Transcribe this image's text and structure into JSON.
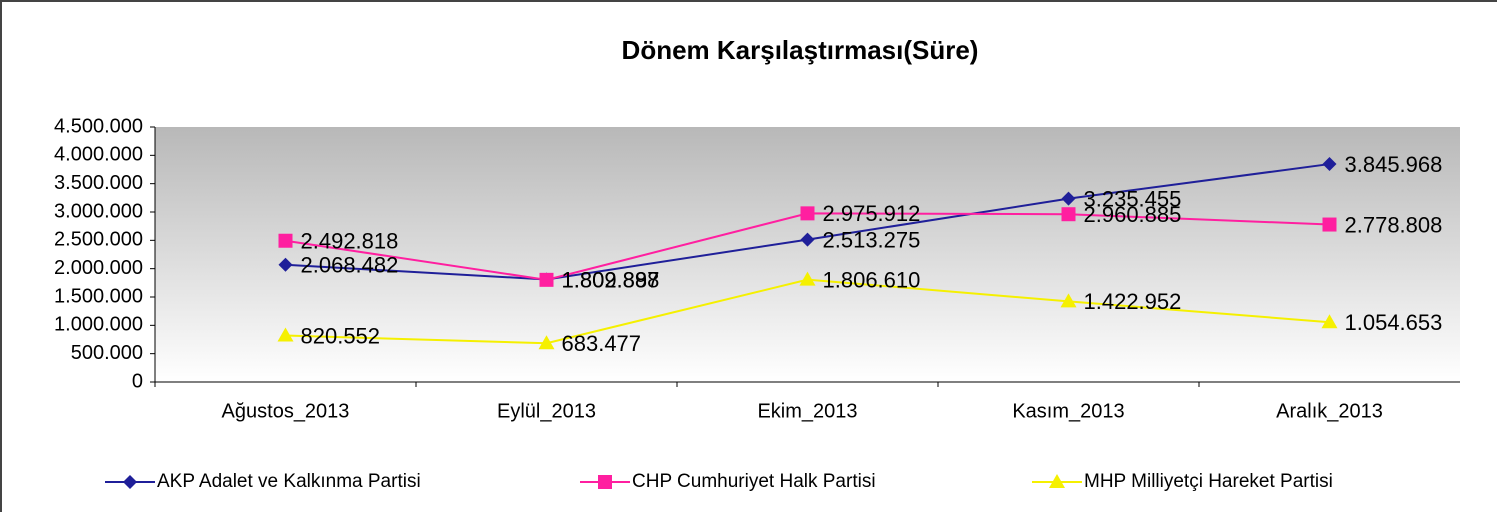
{
  "chart_data": {
    "type": "line",
    "title": "Dönem Karşılaştırması(Süre)",
    "categories": [
      "Ağustos_2013",
      "Eylül_2013",
      "Ekim_2013",
      "Kasım_2013",
      "Aralık_2013"
    ],
    "series": [
      {
        "name": "AKP Adalet ve Kalkınma Partisi",
        "color": "#1f1f99",
        "marker": "diamond",
        "values": [
          2068482,
          1809897,
          2513275,
          3235455,
          3845968
        ],
        "value_labels": [
          "2.068.482",
          "1.809.897",
          "2.513.275",
          "3.235.455",
          "3.845.968"
        ]
      },
      {
        "name": "CHP Cumhuriyet Halk Partisi",
        "color": "#ff1fa0",
        "marker": "square",
        "values": [
          2492818,
          1802888,
          2975912,
          2960885,
          2778808
        ],
        "value_labels": [
          "2.492.818",
          "1.802.888",
          "2.975.912",
          "2.960.885",
          "2.778.808"
        ]
      },
      {
        "name": "MHP Milliyetçi Hareket Partisi",
        "color": "#f5f000",
        "marker": "triangle",
        "values": [
          820552,
          683477,
          1806610,
          1422952,
          1054653
        ],
        "value_labels": [
          "820.552",
          "683.477",
          "1.806.610",
          "1.422.952",
          "1.054.653"
        ]
      }
    ],
    "ylim": [
      0,
      4500000
    ],
    "yticks": [
      0,
      {
        "value": 500000,
        "label": "500.000"
      },
      {
        "value": 1000000,
        "label": "1.000.000"
      },
      {
        "value": 1500000,
        "label": "1.500.000"
      },
      {
        "value": 2000000,
        "label": "2.000.000"
      },
      {
        "value": 2500000,
        "label": "2.500.000"
      },
      {
        "value": 3000000,
        "label": "3.000.000"
      },
      {
        "value": 3500000,
        "label": "3.500.000"
      },
      {
        "value": 4000000,
        "label": "4.000.000"
      },
      {
        "value": 4500000,
        "label": "4.500.000"
      }
    ],
    "legend": "bottom"
  }
}
